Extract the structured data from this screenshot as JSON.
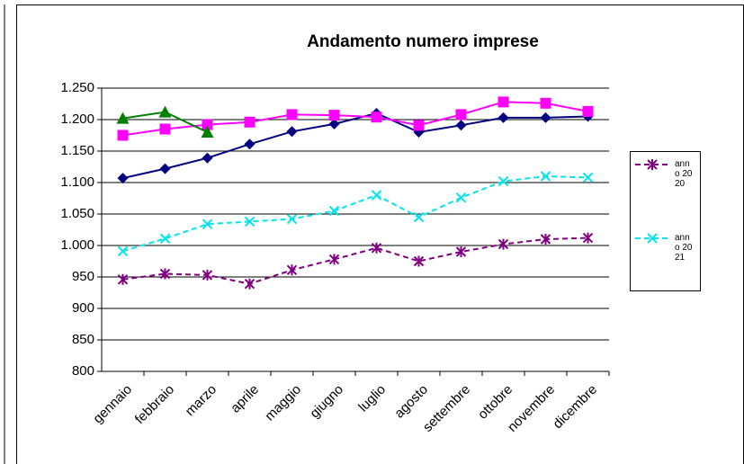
{
  "chart_data": {
    "type": "line",
    "title": "Andamento numero imprese",
    "categories": [
      "gennaio",
      "febbraio",
      "marzo",
      "aprile",
      "maggio",
      "giugno",
      "luglio",
      "agosto",
      "settembre",
      "ottobre",
      "novembre",
      "dicembre"
    ],
    "ylim": [
      800,
      1250
    ],
    "yticks": [
      800,
      850,
      900,
      950,
      {
        "value": 1000,
        "label": "1.000"
      },
      {
        "value": 1050,
        "label": "1.050"
      },
      {
        "value": 1100,
        "label": "1.100"
      },
      {
        "value": 1150,
        "label": "1.150"
      },
      {
        "value": 1200,
        "label": "1.200"
      },
      {
        "value": 1250,
        "label": "1.250"
      }
    ],
    "grid": true,
    "series": [
      {
        "color": "#000080",
        "marker": "diamond",
        "dashed": false,
        "values": [
          1107,
          1122,
          1139,
          1161,
          1181,
          1193,
          1210,
          1180,
          1191,
          1203,
          1203,
          1205
        ]
      },
      {
        "color": "#ff00ff",
        "marker": "square",
        "dashed": false,
        "values": [
          1175,
          1185,
          1192,
          1196,
          1208,
          1207,
          1204,
          1191,
          1208,
          1228,
          1226,
          1213
        ]
      },
      {
        "color": "#008000",
        "marker": "triangle",
        "dashed": false,
        "values": [
          1202,
          1212,
          1180,
          null,
          null,
          null,
          null,
          null,
          null,
          null,
          null,
          null
        ]
      },
      {
        "name": "anno 2020",
        "color": "#800080",
        "marker": "star",
        "dashed": true,
        "values": [
          946,
          955,
          953,
          939,
          961,
          978,
          996,
          975,
          990,
          1002,
          1010,
          1012
        ]
      },
      {
        "name": "anno 2021",
        "color": "#00e5ee",
        "marker": "x",
        "dashed": true,
        "values": [
          991,
          1011,
          1034,
          1038,
          1042,
          1055,
          1080,
          1045,
          1076,
          1102,
          1110,
          1108
        ]
      }
    ]
  }
}
